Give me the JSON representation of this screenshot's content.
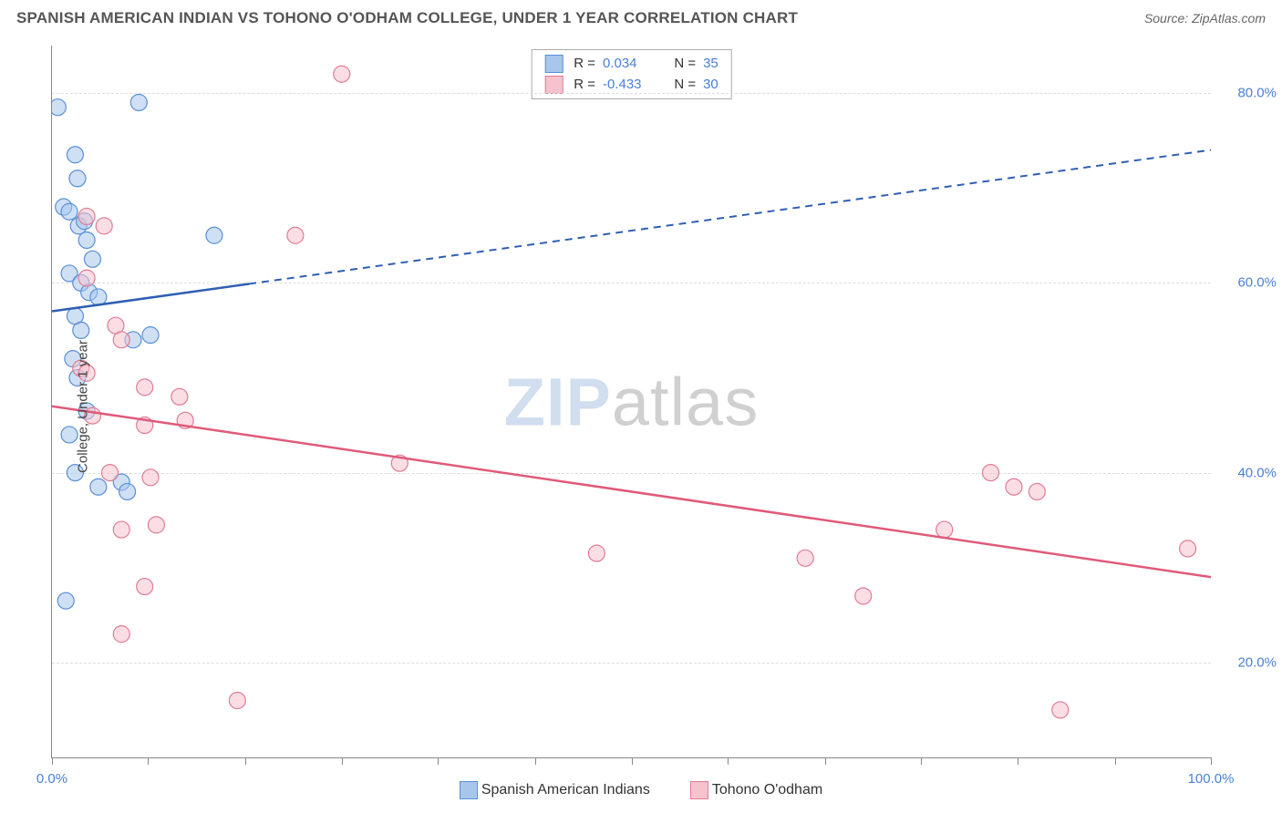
{
  "title": "SPANISH AMERICAN INDIAN VS TOHONO O'ODHAM COLLEGE, UNDER 1 YEAR CORRELATION CHART",
  "source": "Source: ZipAtlas.com",
  "y_axis_label": "College, Under 1 year",
  "watermark": {
    "a": "ZIP",
    "b": "atlas"
  },
  "chart": {
    "type": "scatter_with_regression",
    "background_color": "#ffffff",
    "grid_color": "#dddddd",
    "axis_color": "#888888",
    "tick_label_color": "#4a7fd6",
    "x_min": 0.0,
    "x_max": 100.0,
    "y_min": 10.0,
    "y_max": 85.0,
    "x_ticks": [
      0.0,
      100.0
    ],
    "x_tick_labels": [
      "0.0%",
      "100.0%"
    ],
    "x_minor_ticks": [
      0,
      8.3,
      16.7,
      25,
      33.3,
      41.7,
      50,
      58.3,
      66.7,
      75,
      83.3,
      91.7,
      100
    ],
    "y_grid": [
      20.0,
      40.0,
      60.0,
      80.0
    ],
    "y_grid_labels": [
      "20.0%",
      "40.0%",
      "60.0%",
      "80.0%"
    ],
    "marker_radius": 9,
    "marker_opacity": 0.55,
    "marker_stroke_width": 1.2
  },
  "series": [
    {
      "name": "Spanish American Indians",
      "fill": "#a8c6ec",
      "stroke": "#5a8fd6",
      "line_color": "#2f5fb3",
      "stats": {
        "R": "0.034",
        "N": "35"
      },
      "regression": {
        "x1": 0,
        "y1": 57,
        "x2": 100,
        "y2": 74,
        "solid_until_x": 17
      },
      "points": [
        [
          0.5,
          78.5
        ],
        [
          7.5,
          79
        ],
        [
          2,
          73.5
        ],
        [
          2.2,
          71
        ],
        [
          1,
          68
        ],
        [
          1.5,
          67.5
        ],
        [
          2.3,
          66
        ],
        [
          2.8,
          66.5
        ],
        [
          3,
          64.5
        ],
        [
          14,
          65
        ],
        [
          3.5,
          62.5
        ],
        [
          1.5,
          61
        ],
        [
          2.5,
          60
        ],
        [
          3.2,
          59
        ],
        [
          4,
          58.5
        ],
        [
          2,
          56.5
        ],
        [
          2.5,
          55
        ],
        [
          7,
          54
        ],
        [
          8.5,
          54.5
        ],
        [
          1.8,
          52
        ],
        [
          2.2,
          50
        ],
        [
          3,
          46.5
        ],
        [
          1.5,
          44
        ],
        [
          2,
          40
        ],
        [
          4,
          38.5
        ],
        [
          6,
          39
        ],
        [
          6.5,
          38
        ],
        [
          1.2,
          26.5
        ]
      ]
    },
    {
      "name": "Tohono O'odham",
      "fill": "#f5c2ce",
      "stroke": "#e07c95",
      "line_color": "#e05a7a",
      "stats": {
        "R": "-0.433",
        "N": "30"
      },
      "regression": {
        "x1": 0,
        "y1": 47,
        "x2": 100,
        "y2": 29,
        "solid_until_x": 100
      },
      "points": [
        [
          25,
          82
        ],
        [
          3,
          67
        ],
        [
          4.5,
          66
        ],
        [
          21,
          65
        ],
        [
          3,
          60.5
        ],
        [
          5.5,
          55.5
        ],
        [
          6,
          54
        ],
        [
          2.5,
          51
        ],
        [
          3,
          50.5
        ],
        [
          8,
          49
        ],
        [
          11,
          48
        ],
        [
          3.5,
          46
        ],
        [
          8,
          45
        ],
        [
          11.5,
          45.5
        ],
        [
          5,
          40
        ],
        [
          8.5,
          39.5
        ],
        [
          30,
          41
        ],
        [
          6,
          34
        ],
        [
          9,
          34.5
        ],
        [
          8,
          28
        ],
        [
          47,
          31.5
        ],
        [
          65,
          31
        ],
        [
          70,
          27
        ],
        [
          77,
          34
        ],
        [
          81,
          40
        ],
        [
          83,
          38.5
        ],
        [
          85,
          38
        ],
        [
          98,
          32
        ],
        [
          6,
          23
        ],
        [
          16,
          16
        ],
        [
          87,
          15
        ]
      ]
    }
  ],
  "bottom_legend": [
    {
      "label": "Spanish American Indians",
      "fill": "#a8c6ec",
      "stroke": "#5a8fd6"
    },
    {
      "label": "Tohono O'odham",
      "fill": "#f5c2ce",
      "stroke": "#e07c95"
    }
  ]
}
